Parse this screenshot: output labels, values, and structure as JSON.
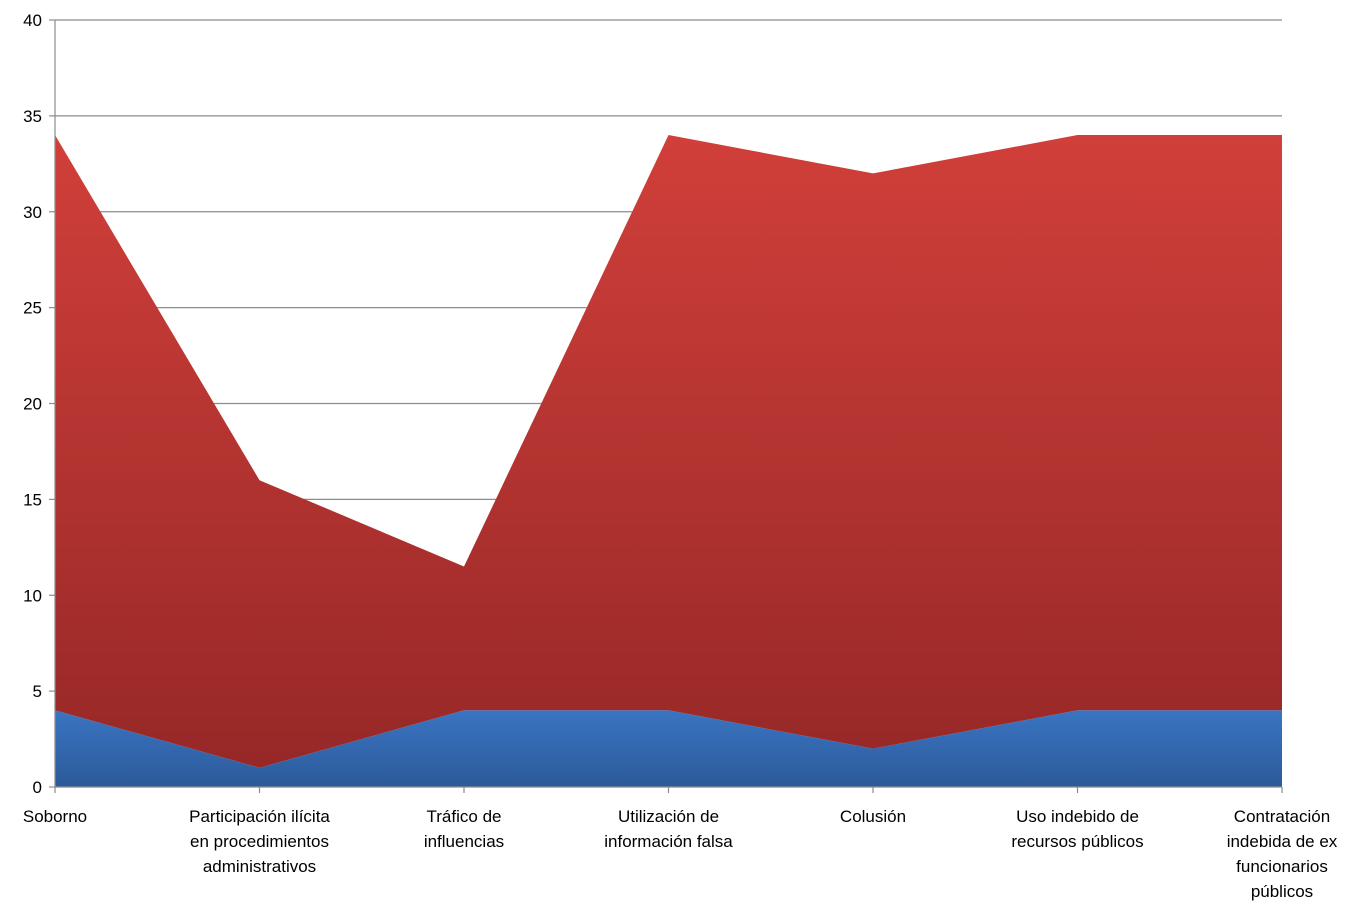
{
  "chart_data": {
    "type": "area",
    "stacked": true,
    "title": "",
    "xlabel": "",
    "ylabel": "",
    "ylim": [
      0,
      40
    ],
    "yticks": [
      0,
      5,
      10,
      15,
      20,
      25,
      30,
      35,
      40
    ],
    "ytick_labels": [
      "0",
      "5",
      "10",
      "15",
      "20",
      "25",
      "30",
      "35",
      "40"
    ],
    "grid": true,
    "legend": "none",
    "categories": [
      [
        "Soborno"
      ],
      [
        "Participación ilícita",
        "en procedimientos",
        "administrativos"
      ],
      [
        "Tráfico de",
        "influencias"
      ],
      [
        "Utilización de",
        "información falsa"
      ],
      [
        "Colusión"
      ],
      [
        "Uso indebido de",
        "recursos públicos"
      ],
      [
        "Contratación",
        "indebida de ex",
        "funcionarios",
        "públicos"
      ]
    ],
    "series": [
      {
        "values": [
          4,
          1,
          4,
          4,
          2,
          4,
          4
        ],
        "color": "#3a74c2",
        "color_dark": "#2c5a9a"
      },
      {
        "values": [
          30,
          15,
          7.5,
          30,
          30,
          30,
          30
        ],
        "color": "#d13f3a",
        "color_dark": "#962827"
      }
    ]
  }
}
